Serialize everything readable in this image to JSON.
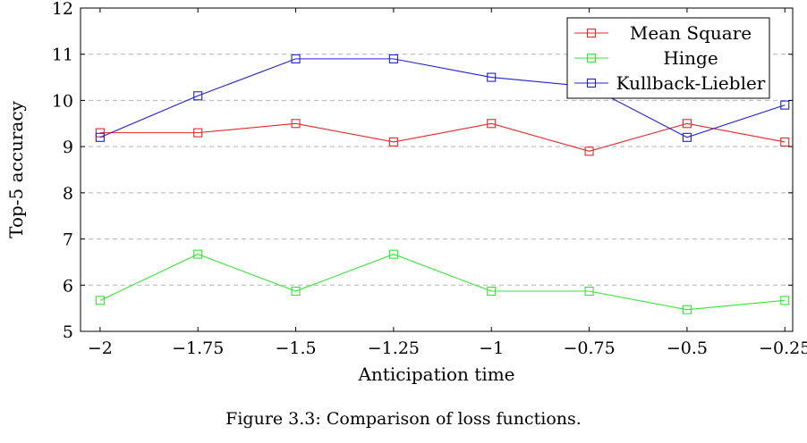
{
  "chart_data": {
    "type": "line",
    "x": [
      -2,
      -1.75,
      -1.5,
      -1.25,
      -1,
      -0.75,
      -0.5,
      -0.25
    ],
    "x_tick_labels": [
      "−2",
      "−1.75",
      "−1.5",
      "−1.25",
      "−1",
      "−0.75",
      "−0.5",
      "−0.25"
    ],
    "y_ticks": [
      5,
      6,
      7,
      8,
      9,
      10,
      11,
      12
    ],
    "xlabel": "Anticipation time",
    "ylabel": "Top-5 accuracy",
    "xlim": [
      -2.05,
      -0.23
    ],
    "ylim": [
      5,
      12
    ],
    "grid": "horizontal-dashed",
    "legend_position": "top-right",
    "marker": "square",
    "series": [
      {
        "name": "Mean Square",
        "color": "#e8262b",
        "values": [
          9.3,
          9.3,
          9.5,
          9.1,
          9.5,
          8.9,
          9.5,
          9.1
        ]
      },
      {
        "name": "Hinge",
        "color": "#33e633",
        "values": [
          5.67,
          6.67,
          5.87,
          6.67,
          5.87,
          5.87,
          5.47,
          5.67
        ]
      },
      {
        "name": "Kullback-Liebler",
        "color": "#2020d0",
        "values": [
          9.2,
          10.1,
          10.9,
          10.9,
          10.5,
          10.3,
          9.2,
          9.9
        ]
      }
    ]
  },
  "caption": "Figure 3.3: Comparison of loss functions."
}
